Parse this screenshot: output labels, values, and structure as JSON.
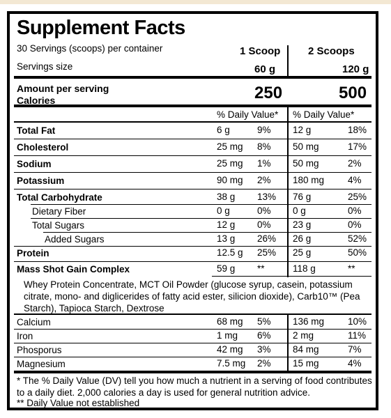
{
  "title": "Supplement Facts",
  "servings_per_container": "30 Servings (scoops) per container",
  "servings_size_label": "Servings size",
  "col1_header": "1 Scoop",
  "col2_header": "2 Scoops",
  "col1_size": "60 g",
  "col2_size": "120 g",
  "amount_label": "Amount per serving",
  "calories_label": "Calories",
  "calories_1": "250",
  "calories_2": "500",
  "dv_header": "% Daily Value*",
  "nutrients_a": [
    {
      "name": "Total Fat",
      "v1": "6 g",
      "p1": "9%",
      "v2": "12 g",
      "p2": "18%"
    },
    {
      "name": "Cholesterol",
      "v1": "25 mg",
      "p1": "8%",
      "v2": "50 mg",
      "p2": "17%"
    },
    {
      "name": "Sodium",
      "v1": "25 mg",
      "p1": "1%",
      "v2": "50 mg",
      "p2": "2%"
    },
    {
      "name": "Potassium",
      "v1": "90 mg",
      "p1": "2%",
      "v2": "180 mg",
      "p2": "4%"
    },
    {
      "name": "Total Carbohydrate",
      "v1": "38 g",
      "p1": "13%",
      "v2": "76 g",
      "p2": "25%"
    },
    {
      "name": "Dietary Fiber",
      "v1": "0 g",
      "p1": "0%",
      "v2": "0 g",
      "p2": "0%"
    },
    {
      "name": "Total Sugars",
      "v1": "12 g",
      "p1": "0%",
      "v2": "23 g",
      "p2": "0%"
    },
    {
      "name": "Added Sugars",
      "v1": "13 g",
      "p1": "26%",
      "v2": "26 g",
      "p2": "52%"
    },
    {
      "name": "Protein",
      "v1": "12.5 g",
      "p1": "25%",
      "v2": "25 g",
      "p2": "50%"
    },
    {
      "name": "Mass Shot Gain Complex",
      "v1": "59 g",
      "p1": "**",
      "v2": "118 g",
      "p2": "**"
    }
  ],
  "ingredients": "Whey Protein Concentrate, MCT Oil Powder (glucose syrup, casein, potassium citrate, mono- and diglicerides of fatty acid ester, silicion dioxide), Carb10™ (Pea Starch), Tapioca Starch, Dextrose",
  "nutrients_b": [
    {
      "name": "Calcium",
      "v1": "68 mg",
      "p1": "5%",
      "v2": "136 mg",
      "p2": "10%"
    },
    {
      "name": "Iron",
      "v1": "1 mg",
      "p1": "6%",
      "v2": "2 mg",
      "p2": "11%"
    },
    {
      "name": "Phosporus",
      "v1": "42 mg",
      "p1": "3%",
      "v2": "84 mg",
      "p2": "7%"
    },
    {
      "name": "Magnesium",
      "v1": "7.5 mg",
      "p1": "2%",
      "v2": "15 mg",
      "p2": "4%"
    }
  ],
  "footnote1": "* The % Daily Value (DV) tell you how much a nutrient in a serving of food contributes to a daily diet. 2,000 calories a day is used for general nutrition advice.",
  "footnote2": "** Daily Value not established"
}
